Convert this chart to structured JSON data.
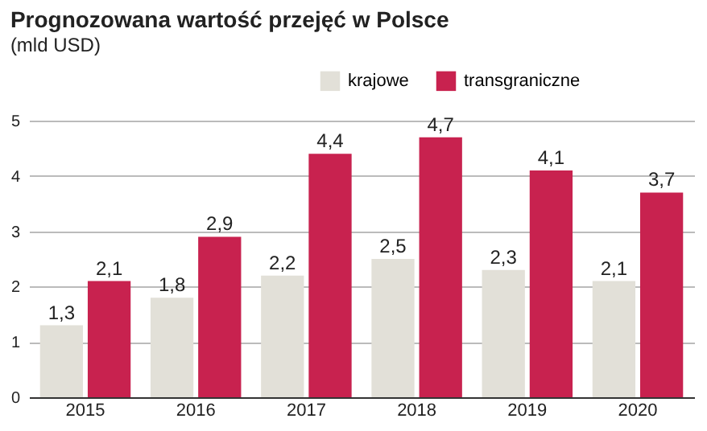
{
  "chart_data": {
    "type": "bar",
    "title": "Prognozowana wartość przejęć w Polsce",
    "subtitle": "(mld USD)",
    "categories": [
      "2015",
      "2016",
      "2017",
      "2018",
      "2019",
      "2020"
    ],
    "series": [
      {
        "name": "krajowe",
        "color": "#e2e0d8",
        "values": [
          1.3,
          1.8,
          2.2,
          2.5,
          2.3,
          2.1
        ],
        "value_labels": [
          "1,3",
          "1,8",
          "2,2",
          "2,5",
          "2,3",
          "2,1"
        ]
      },
      {
        "name": "transgraniczne",
        "color": "#c8224f",
        "values": [
          2.1,
          2.9,
          4.4,
          4.7,
          4.1,
          3.7
        ],
        "value_labels": [
          "2,1",
          "2,9",
          "4,4",
          "4,7",
          "4,1",
          "3,7"
        ]
      }
    ],
    "ylim": [
      0,
      5
    ],
    "yticks": [
      0,
      1,
      2,
      3,
      4,
      5
    ],
    "grid": "y",
    "legend": "top right"
  }
}
